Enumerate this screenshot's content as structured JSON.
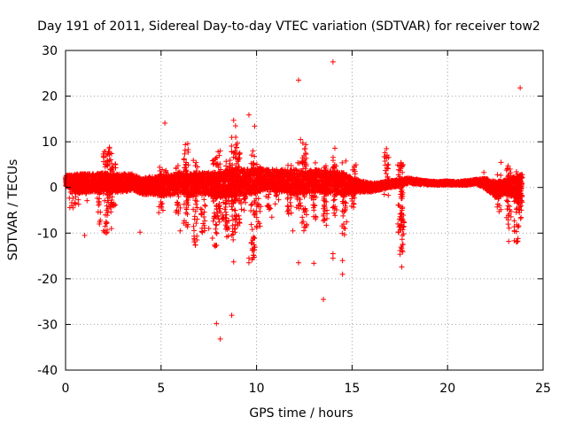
{
  "chart_data": {
    "type": "scatter",
    "title": "Day 191 of 2011, Sidereal Day-to-day VTEC variation (SDTVAR) for receiver tow2",
    "xlabel": "GPS time / hours",
    "ylabel": "SDTVAR / TECUs",
    "xlim": [
      0,
      25
    ],
    "ylim": [
      -40,
      30
    ],
    "xticks": [
      "0",
      "5",
      "10",
      "15",
      "20",
      "25"
    ],
    "yticks": [
      "30",
      "20",
      "10",
      "0",
      "-10",
      "-20",
      "-30",
      "-40"
    ],
    "grid": true,
    "marker": "+",
    "color": "#ff0000",
    "series": [
      {
        "name": "SDTVAR",
        "band_points": [
          [
            0.0,
            1.5,
            1.2
          ],
          [
            0.3,
            1.2,
            1.5
          ],
          [
            0.6,
            0.8,
            2.2
          ],
          [
            1.0,
            1.0,
            2.0
          ],
          [
            1.5,
            1.0,
            2.0
          ],
          [
            2.0,
            1.2,
            2.0
          ],
          [
            2.5,
            0.8,
            2.2
          ],
          [
            3.0,
            1.0,
            2.0
          ],
          [
            3.5,
            1.2,
            1.8
          ],
          [
            4.0,
            0.2,
            1.8
          ],
          [
            4.5,
            0.5,
            2.0
          ],
          [
            5.0,
            0.3,
            2.2
          ],
          [
            5.5,
            0.5,
            2.5
          ],
          [
            6.0,
            1.0,
            2.2
          ],
          [
            6.5,
            0.5,
            2.5
          ],
          [
            7.0,
            1.0,
            2.2
          ],
          [
            7.5,
            0.8,
            2.5
          ],
          [
            8.0,
            0.5,
            2.8
          ],
          [
            8.5,
            0.8,
            3.0
          ],
          [
            9.0,
            1.0,
            3.0
          ],
          [
            9.5,
            1.2,
            2.8
          ],
          [
            10.0,
            1.5,
            2.8
          ],
          [
            10.5,
            1.8,
            2.2
          ],
          [
            11.0,
            1.5,
            2.5
          ],
          [
            11.5,
            1.5,
            2.5
          ],
          [
            12.0,
            1.2,
            2.8
          ],
          [
            12.5,
            1.0,
            2.5
          ],
          [
            13.0,
            1.5,
            2.5
          ],
          [
            13.5,
            1.2,
            2.5
          ],
          [
            14.0,
            1.0,
            2.5
          ],
          [
            14.5,
            0.8,
            2.5
          ],
          [
            15.0,
            0.5,
            1.8
          ],
          [
            15.5,
            0.2,
            1.2
          ],
          [
            16.0,
            0.0,
            1.0
          ],
          [
            16.5,
            0.3,
            0.8
          ],
          [
            17.0,
            0.8,
            0.8
          ],
          [
            17.5,
            1.0,
            0.8
          ],
          [
            18.0,
            1.5,
            0.6
          ],
          [
            18.5,
            1.2,
            0.5
          ],
          [
            19.0,
            1.0,
            0.4
          ],
          [
            19.5,
            0.9,
            0.4
          ],
          [
            20.0,
            1.0,
            0.4
          ],
          [
            20.5,
            0.9,
            0.4
          ],
          [
            21.0,
            1.0,
            0.5
          ],
          [
            21.5,
            1.3,
            0.5
          ],
          [
            22.0,
            0.8,
            1.2
          ],
          [
            22.5,
            -0.5,
            1.8
          ],
          [
            23.0,
            0.0,
            1.5
          ],
          [
            23.5,
            0.0,
            2.5
          ],
          [
            23.9,
            0.5,
            2.5
          ]
        ],
        "spikes": [
          [
            0.3,
            -4.5,
            2.5
          ],
          [
            0.6,
            -4,
            3
          ],
          [
            1.1,
            -3,
            3
          ],
          [
            1.7,
            -8,
            3
          ],
          [
            2.1,
            -10,
            8
          ],
          [
            2.3,
            -7,
            9
          ],
          [
            2.5,
            -5,
            6
          ],
          [
            5.0,
            -5.5,
            4.5
          ],
          [
            5.3,
            -4,
            4
          ],
          [
            5.9,
            -6,
            5
          ],
          [
            6.3,
            -9,
            9.5
          ],
          [
            6.8,
            -13,
            6
          ],
          [
            7.2,
            -10,
            3
          ],
          [
            7.8,
            -13,
            7
          ],
          [
            8.0,
            -8,
            8.5
          ],
          [
            8.3,
            -7,
            5
          ],
          [
            8.5,
            -11,
            6
          ],
          [
            8.8,
            -12,
            11
          ],
          [
            9.0,
            -9,
            9
          ],
          [
            9.3,
            -5,
            4
          ],
          [
            9.8,
            -16,
            8
          ],
          [
            10.1,
            -9,
            6
          ],
          [
            10.6,
            -5,
            5
          ],
          [
            11.1,
            -4,
            4
          ],
          [
            11.7,
            -6,
            5
          ],
          [
            12.2,
            -5,
            7
          ],
          [
            12.5,
            -10,
            10
          ],
          [
            13.0,
            -8,
            6
          ],
          [
            13.6,
            -9,
            5
          ],
          [
            14.1,
            -7,
            7
          ],
          [
            14.6,
            -11,
            6
          ],
          [
            15.1,
            -6,
            5
          ],
          [
            16.8,
            -2,
            8.5
          ],
          [
            17.5,
            -10,
            6
          ],
          [
            17.6,
            -15,
            5
          ],
          [
            22.7,
            -6,
            3
          ],
          [
            23.2,
            -9,
            5.5
          ],
          [
            23.6,
            -12,
            4
          ],
          [
            23.8,
            -7,
            3
          ]
        ],
        "outliers": [
          [
            14.0,
            27.5
          ],
          [
            12.2,
            23.5
          ],
          [
            23.8,
            21.8
          ],
          [
            9.6,
            15.9
          ],
          [
            5.2,
            14.1
          ],
          [
            8.8,
            14.7
          ],
          [
            8.9,
            13.5
          ],
          [
            9.9,
            13.4
          ],
          [
            1.0,
            -10.5
          ],
          [
            3.9,
            -9.8
          ],
          [
            7.9,
            -29.8
          ],
          [
            8.1,
            -33.2
          ],
          [
            8.7,
            -28.0
          ],
          [
            8.8,
            -16.3
          ],
          [
            9.6,
            -16.5
          ],
          [
            9.6,
            -15.5
          ],
          [
            12.2,
            -16.5
          ],
          [
            13.0,
            -16.6
          ],
          [
            13.5,
            -24.5
          ],
          [
            14.0,
            -14.5
          ],
          [
            14.0,
            -15.5
          ],
          [
            14.5,
            -16.0
          ],
          [
            14.5,
            -19.0
          ],
          [
            17.6,
            -17.4
          ],
          [
            17.6,
            -13.3
          ],
          [
            23.2,
            -11.8
          ],
          [
            23.6,
            -11.9
          ],
          [
            16.8,
            8.5
          ],
          [
            12.3,
            10.5
          ],
          [
            2.3,
            8.8
          ],
          [
            6.4,
            9.6
          ],
          [
            9.0,
            9.7
          ],
          [
            14.1,
            8.6
          ],
          [
            22.8,
            5.5
          ],
          [
            21.9,
            3.3
          ],
          [
            10.8,
            -6.5
          ],
          [
            11.9,
            -9.5
          ],
          [
            7.5,
            -9.0
          ],
          [
            6.0,
            -9.5
          ],
          [
            2.4,
            -9.0
          ]
        ],
        "seed": 191
      }
    ]
  }
}
